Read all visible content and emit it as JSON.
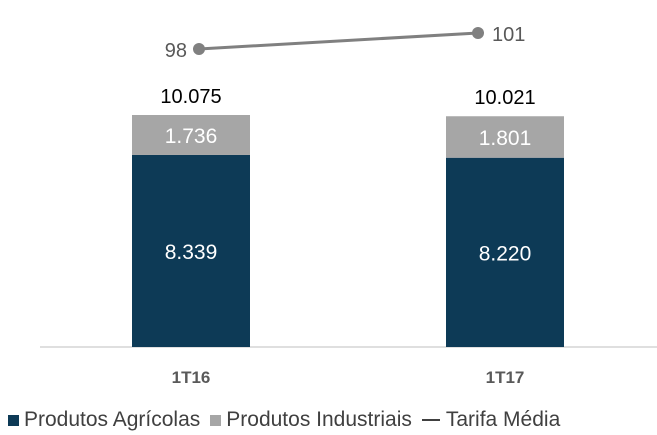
{
  "chart_data": {
    "type": "bar",
    "stacked": true,
    "categories": [
      "1T16",
      "1T17"
    ],
    "series": [
      {
        "name": "Produtos Agrícolas",
        "values": [
          8339,
          8220
        ],
        "labels": [
          "8.339",
          "8.220"
        ],
        "color": "#0d3a56"
      },
      {
        "name": "Produtos Industriais",
        "values": [
          1736,
          1801
        ],
        "labels": [
          "1.736",
          "1.801"
        ],
        "color": "#a6a6a6"
      }
    ],
    "totals": {
      "values": [
        10075,
        10021
      ],
      "labels": [
        "10.075",
        "10.021"
      ]
    },
    "line_series": {
      "name": "Tarifa Média",
      "values": [
        98,
        101
      ],
      "labels": [
        "98",
        "101"
      ],
      "color": "#808080"
    },
    "ylim": [
      0,
      10075
    ],
    "legend_position": "bottom",
    "grid": false
  }
}
